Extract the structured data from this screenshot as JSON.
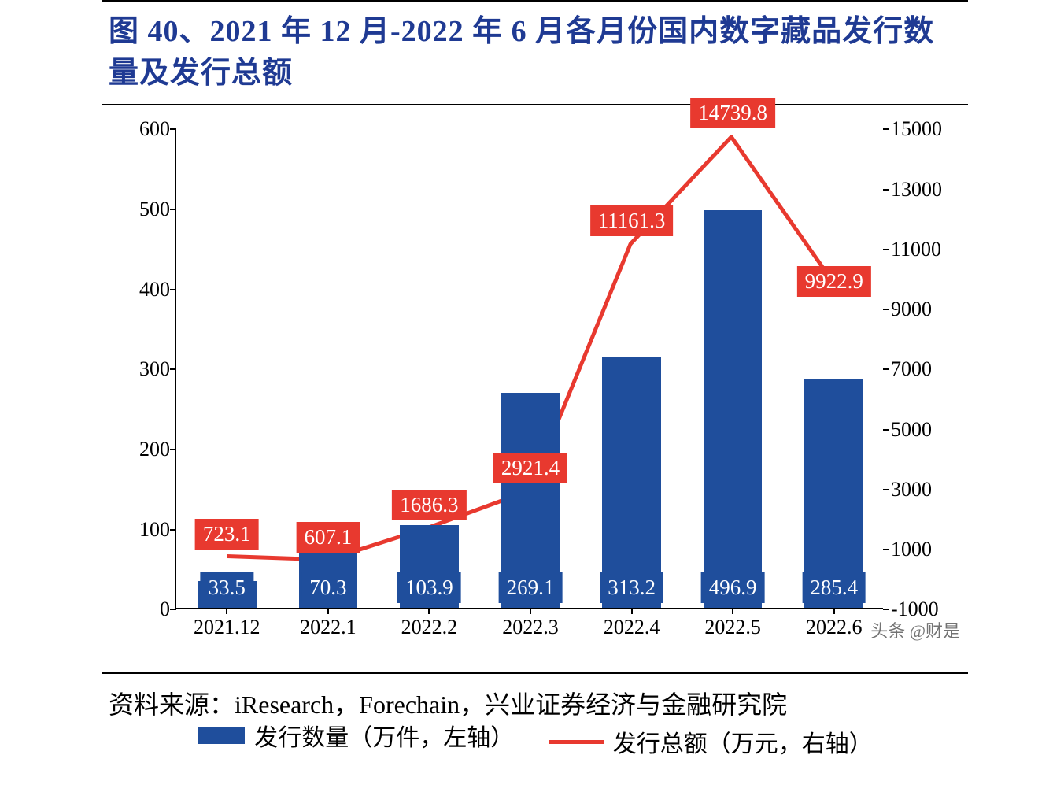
{
  "title": "图 40、2021 年 12 月-2022 年 6 月各月份国内数字藏品发行数量及发行总额",
  "footer": "资料来源：iResearch，Forechain，兴业证券经济与金融研究院",
  "watermark": "头条 @财是",
  "chart": {
    "type": "bar+line",
    "background_color": "#ffffff",
    "categories": [
      "2021.12",
      "2022.1",
      "2022.2",
      "2022.3",
      "2022.4",
      "2022.5",
      "2022.6"
    ],
    "bars": {
      "label": "发行数量（万件，左轴）",
      "color": "#1f4e9c",
      "values": [
        33.5,
        70.3,
        103.9,
        269.1,
        313.2,
        496.9,
        285.4
      ],
      "value_labels": [
        "33.5",
        "70.3",
        "103.9",
        "269.1",
        "313.2",
        "496.9",
        "285.4"
      ],
      "bar_width_frac": 0.58
    },
    "line": {
      "label": "发行总额（万元，右轴）",
      "color": "#e8392f",
      "line_width": 5,
      "values": [
        723.1,
        607.1,
        1686.3,
        2921.4,
        11161.3,
        14739.8,
        9922.9
      ],
      "value_labels": [
        "723.1",
        "607.1",
        "1686.3",
        "2921.4",
        "11161.3",
        "14739.8",
        "9922.9"
      ]
    },
    "y_left": {
      "min": 0,
      "max": 600,
      "step": 100,
      "color": "#000"
    },
    "y_right": {
      "min": -1000,
      "max": 15000,
      "step": 2000,
      "color": "#000"
    },
    "axis_color": "#000000",
    "tick_fontsize": 26,
    "label_fontsize": 27,
    "title_fontsize": 38,
    "title_color": "#1f3a93",
    "legend_fontsize": 30
  }
}
